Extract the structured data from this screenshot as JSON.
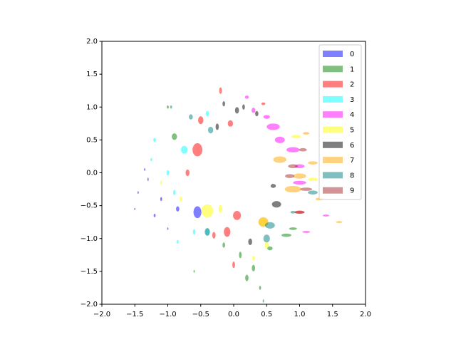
{
  "chart_data": {
    "type": "ellipse",
    "xlim": [
      -2,
      2
    ],
    "ylim": [
      -2,
      2
    ],
    "xticks": [
      {
        "value": -2,
        "label": "−2.0"
      },
      {
        "value": -1.5,
        "label": "−1.5"
      },
      {
        "value": -1,
        "label": "−1.0"
      },
      {
        "value": -0.5,
        "label": "−0.5"
      },
      {
        "value": 0,
        "label": "0.0"
      },
      {
        "value": 0.5,
        "label": "0.5"
      },
      {
        "value": 1,
        "label": "1.0"
      },
      {
        "value": 1.5,
        "label": "1.5"
      },
      {
        "value": 2,
        "label": "2.0"
      }
    ],
    "yticks": [
      {
        "value": -2,
        "label": "−2.0"
      },
      {
        "value": -1.5,
        "label": "−1.5"
      },
      {
        "value": -1,
        "label": "−1.0"
      },
      {
        "value": -0.5,
        "label": "−0.5"
      },
      {
        "value": 0,
        "label": "0.0"
      },
      {
        "value": 0.5,
        "label": "0.5"
      },
      {
        "value": 1,
        "label": "1.0"
      },
      {
        "value": 1.5,
        "label": "1.5"
      },
      {
        "value": 2,
        "label": "2.0"
      }
    ],
    "legend": "upper right",
    "alpha": 0.5,
    "series": [
      {
        "name": "0",
        "color": "blue",
        "x": [
          -0.55,
          -0.85,
          -1.45,
          -1.3,
          -1.1,
          -1.5,
          -1.0,
          -1.2,
          -1.35
        ],
        "y": [
          -0.6,
          -0.55,
          -0.3,
          -0.1,
          -0.4,
          -0.55,
          -0.85,
          -0.65,
          0.05
        ],
        "width": [
          0.12,
          0.05,
          0.02,
          0.02,
          0.03,
          0.02,
          0.02,
          0.03,
          0.02
        ],
        "height": [
          0.18,
          0.08,
          0.04,
          0.05,
          0.06,
          0.03,
          0.04,
          0.05,
          0.04
        ]
      },
      {
        "name": "1",
        "color": "green",
        "x": [
          -0.9,
          0.2,
          0.3,
          0.8,
          0.9,
          0.1,
          -0.15,
          0.4,
          -1.0,
          0.55,
          -0.6,
          0.45
        ],
        "y": [
          0.55,
          -1.6,
          -1.45,
          -0.95,
          -0.85,
          -1.25,
          -1.1,
          -1.75,
          1.0,
          -1.15,
          -1.5,
          -1.95
        ],
        "width": [
          0.08,
          0.05,
          0.05,
          0.15,
          0.12,
          0.04,
          0.04,
          0.03,
          0.03,
          0.08,
          0.02,
          0.02
        ],
        "height": [
          0.1,
          0.1,
          0.1,
          0.05,
          0.04,
          0.1,
          0.08,
          0.06,
          0.05,
          0.06,
          0.04,
          0.05
        ]
      },
      {
        "name": "2",
        "color": "red",
        "x": [
          -0.55,
          -0.5,
          -0.2,
          -0.1,
          0.05,
          -0.7,
          -0.3,
          0.0,
          -0.05,
          1.0,
          0.45
        ],
        "y": [
          0.35,
          0.8,
          1.25,
          -0.9,
          -0.65,
          0.0,
          -0.95,
          -1.4,
          0.75,
          -0.6,
          1.05
        ],
        "width": [
          0.15,
          0.08,
          0.04,
          0.1,
          0.12,
          0.06,
          0.05,
          0.04,
          0.08,
          0.15,
          0.06
        ],
        "height": [
          0.2,
          0.12,
          0.1,
          0.15,
          0.14,
          0.1,
          0.1,
          0.1,
          0.1,
          0.04,
          0.04
        ]
      },
      {
        "name": "3",
        "color": "cyan",
        "x": [
          -0.75,
          -1.2,
          -0.9,
          -0.6,
          -0.4,
          -1.0,
          -0.4,
          -1.25,
          -0.85
        ],
        "y": [
          0.35,
          0.5,
          -0.3,
          -0.9,
          -0.9,
          0.0,
          0.9,
          0.2,
          -1.05
        ],
        "width": [
          0.1,
          0.04,
          0.04,
          0.04,
          0.06,
          0.04,
          0.05,
          0.03,
          0.03
        ],
        "height": [
          0.12,
          0.06,
          0.08,
          0.08,
          0.1,
          0.08,
          0.08,
          0.05,
          0.06
        ]
      },
      {
        "name": "4",
        "color": "magenta",
        "x": [
          0.6,
          0.9,
          0.2,
          0.7,
          1.0,
          1.0,
          0.5,
          0.3,
          1.4,
          1.1
        ],
        "y": [
          0.7,
          0.35,
          1.15,
          0.5,
          0.1,
          -0.15,
          0.85,
          0.95,
          -0.65,
          -0.9
        ],
        "width": [
          0.2,
          0.2,
          0.06,
          0.15,
          0.15,
          0.2,
          0.1,
          0.06,
          0.1,
          0.12
        ],
        "height": [
          0.1,
          0.08,
          0.05,
          0.1,
          0.06,
          0.06,
          0.06,
          0.08,
          0.03,
          0.03
        ]
      },
      {
        "name": "5",
        "color": "yellow",
        "x": [
          -0.4,
          -0.2,
          0.45,
          0.95,
          0.5,
          -0.8,
          0.3,
          1.2,
          -1.1
        ],
        "y": [
          -0.58,
          -0.55,
          -0.75,
          0.55,
          -1.1,
          -0.4,
          -1.3,
          -0.1,
          -0.15
        ],
        "width": [
          0.18,
          0.06,
          0.15,
          0.15,
          0.06,
          0.04,
          0.04,
          0.15,
          0.03
        ],
        "height": [
          0.2,
          0.12,
          0.12,
          0.05,
          0.1,
          0.08,
          0.08,
          0.05,
          0.06
        ]
      },
      {
        "name": "6",
        "color": "black",
        "x": [
          0.65,
          0.05,
          -0.25,
          0.25,
          -0.15,
          0.35,
          0.6,
          0.15
        ],
        "y": [
          -0.48,
          0.95,
          0.7,
          -1.05,
          1.05,
          0.9,
          -0.2,
          1.0
        ],
        "width": [
          0.14,
          0.06,
          0.05,
          0.06,
          0.04,
          0.05,
          0.08,
          0.04
        ],
        "height": [
          0.1,
          0.1,
          0.1,
          0.1,
          0.08,
          0.08,
          0.06,
          0.08
        ]
      },
      {
        "name": "7",
        "color": "orange",
        "x": [
          0.9,
          1.0,
          0.7,
          0.45,
          1.2,
          1.3,
          1.6,
          1.1
        ],
        "y": [
          -0.25,
          -0.05,
          0.2,
          -0.75,
          0.15,
          -0.4,
          -0.75,
          0.6
        ],
        "width": [
          0.25,
          0.2,
          0.2,
          0.15,
          0.15,
          0.12,
          0.1,
          0.1
        ],
        "height": [
          0.1,
          0.08,
          0.1,
          0.15,
          0.05,
          0.04,
          0.03,
          0.04
        ]
      },
      {
        "name": "8",
        "color": "teal",
        "x": [
          -0.35,
          -0.4,
          0.5,
          0.55,
          -0.65,
          -0.95,
          0.9,
          1.2
        ],
        "y": [
          0.65,
          -0.9,
          -1.0,
          -0.8,
          0.85,
          1.0,
          -0.6,
          -0.3
        ],
        "width": [
          0.08,
          0.08,
          0.1,
          0.15,
          0.06,
          0.03,
          0.08,
          0.15
        ],
        "height": [
          0.1,
          0.12,
          0.12,
          0.1,
          0.08,
          0.05,
          0.04,
          0.06
        ]
      },
      {
        "name": "9",
        "color": "brown",
        "x": [
          1.0,
          0.9,
          1.1,
          1.05,
          0.85
        ],
        "y": [
          -0.6,
          0.1,
          -0.25,
          0.35,
          -0.05
        ],
        "width": [
          0.15,
          0.15,
          0.18,
          0.12,
          0.14
        ],
        "height": [
          0.05,
          0.06,
          0.05,
          0.05,
          0.06
        ]
      }
    ]
  }
}
